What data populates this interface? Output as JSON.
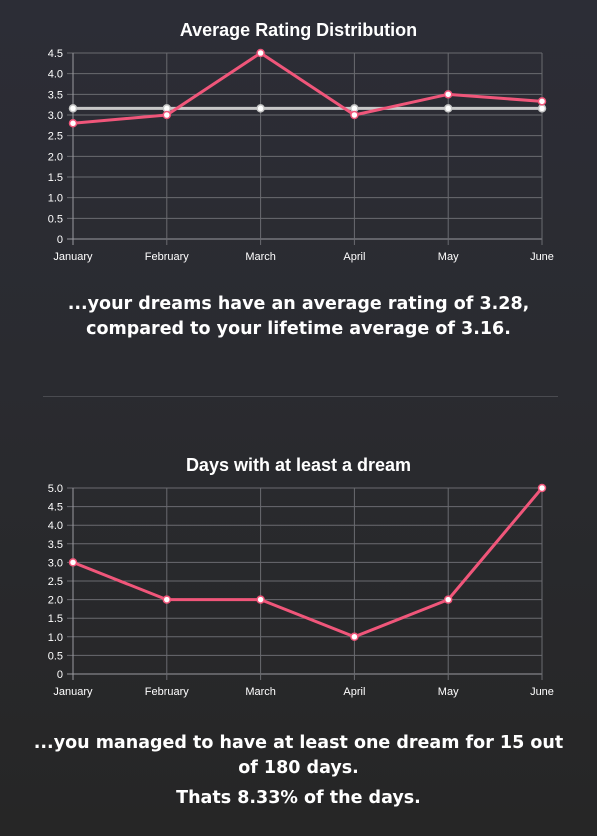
{
  "charts": [
    {
      "title": "Average Rating Distribution",
      "caption": "...your dreams have an average rating of 3.28, compared to your lifetime average of 3.16.",
      "chart_data": {
        "type": "line",
        "title": "Average Rating Distribution",
        "categories": [
          "January",
          "February",
          "March",
          "April",
          "May",
          "June"
        ],
        "series": [
          {
            "values": [
              2.8,
              3.0,
              4.5,
              3.0,
              3.5,
              3.33
            ],
            "color": "#f0567a"
          },
          {
            "values": [
              3.16,
              3.16,
              3.16,
              3.16,
              3.16,
              3.16
            ],
            "color": "#c8c8c8"
          }
        ],
        "yticks": [
          "0",
          "0.5",
          "1.0",
          "1.5",
          "2.0",
          "2.5",
          "3.0",
          "3.5",
          "4.0",
          "4.5"
        ],
        "ylim": [
          0,
          4.5
        ],
        "grid": true
      }
    },
    {
      "title": "Days with at least a dream",
      "caption": "...you managed to have at least one dream for 15 out of 180 days.",
      "caption2": "Thats 8.33% of the days.",
      "chart_data": {
        "type": "line",
        "title": "Days with at least a dream",
        "categories": [
          "January",
          "February",
          "March",
          "April",
          "May",
          "June"
        ],
        "series": [
          {
            "values": [
              3,
              2,
              2,
              1,
              2,
              5
            ],
            "color": "#f0567a"
          }
        ],
        "yticks": [
          "0",
          "0.5",
          "1.0",
          "1.5",
          "2.0",
          "2.5",
          "3.0",
          "3.5",
          "4.0",
          "4.5",
          "5.0"
        ],
        "ylim": [
          0,
          5
        ],
        "grid": true
      }
    }
  ]
}
